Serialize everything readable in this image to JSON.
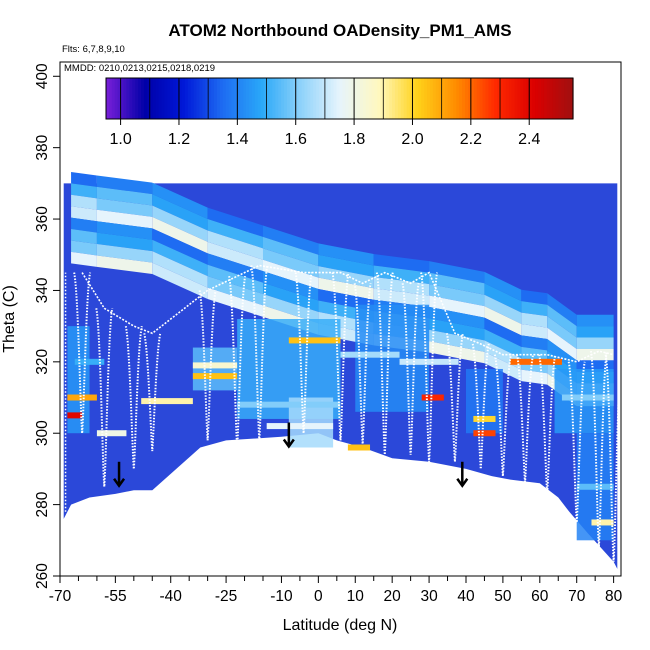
{
  "chart_data": {
    "type": "heatmap",
    "title": "ATOM2 Northbound OADensity_PM1_AMS",
    "annotation_flights": "Flts: 6,7,8,9,10",
    "annotation_dates": "MMDD: 0210,0213,0215,0218,0219",
    "xlabel": "Latitude (deg N)",
    "ylabel": "Theta (C)",
    "xlim": [
      -70,
      82
    ],
    "ylim": [
      260,
      404
    ],
    "x_ticks": [
      -70,
      -55,
      -40,
      -25,
      -10,
      0,
      10,
      20,
      30,
      40,
      50,
      60,
      70,
      80
    ],
    "x_minor_ticks": [
      -65,
      -60,
      -50,
      -45,
      -35,
      -30,
      -20,
      -15,
      -5,
      5,
      15,
      25,
      35,
      45,
      55,
      65,
      75
    ],
    "y_ticks": [
      260,
      280,
      300,
      320,
      340,
      360,
      380,
      400
    ],
    "colorbar": {
      "min": 0.95,
      "max": 2.55,
      "ticks": [
        "1.0",
        "1.2",
        "1.4",
        "1.6",
        "1.8",
        "2.0",
        "2.2",
        "2.4"
      ],
      "tick_values": [
        1.0,
        1.2,
        1.4,
        1.6,
        1.8,
        2.0,
        2.2,
        2.4
      ],
      "colors": [
        "#7a1fd9",
        "#0000a8",
        "#0018d8",
        "#1e6cf2",
        "#2aa8f8",
        "#8ed2fa",
        "#e6f4fc",
        "#fff8c0",
        "#ffd21a",
        "#ff8c00",
        "#ff2a00",
        "#dc0000",
        "#a01010"
      ]
    },
    "tropopause_boundary": {
      "lat": [
        -69,
        -67,
        -62,
        -55,
        -50,
        -45,
        -32,
        -25,
        -10,
        0,
        5,
        12,
        20,
        30,
        40,
        47,
        52,
        60,
        65,
        68,
        73,
        80,
        81,
        81,
        -69
      ],
      "theta": [
        276,
        280,
        282,
        283,
        284,
        284,
        296,
        298,
        299,
        300,
        298,
        296,
        293,
        292,
        290,
        288,
        287,
        286,
        282,
        278,
        272,
        264,
        262,
        370,
        370
      ]
    },
    "stratosphere_boundary": {
      "lat": [
        -67,
        -60,
        -45,
        -30,
        -15,
        0,
        15,
        30,
        45,
        55,
        62,
        70,
        80
      ],
      "theta": [
        370,
        369,
        367,
        360,
        355,
        350,
        347,
        345,
        342,
        337,
        336,
        330,
        330
      ]
    },
    "arrows_lat": [
      -54,
      -8,
      39
    ],
    "arrows_theta": [
      292,
      303,
      292
    ],
    "profiles": [
      {
        "lat": -64,
        "base": 300,
        "top": 345
      },
      {
        "lat": -58,
        "base": 285,
        "top": 335
      },
      {
        "lat": -50,
        "base": 290,
        "top": 330
      },
      {
        "lat": -45,
        "base": 295,
        "top": 328
      },
      {
        "lat": -30,
        "base": 298,
        "top": 340
      },
      {
        "lat": -22,
        "base": 296,
        "top": 344
      },
      {
        "lat": -16,
        "base": 298,
        "top": 347
      },
      {
        "lat": -4,
        "base": 300,
        "top": 345
      },
      {
        "lat": 6,
        "base": 298,
        "top": 345
      },
      {
        "lat": 12,
        "base": 297,
        "top": 342
      },
      {
        "lat": 18,
        "base": 294,
        "top": 345
      },
      {
        "lat": 25,
        "base": 294,
        "top": 342
      },
      {
        "lat": 30,
        "base": 292,
        "top": 345
      },
      {
        "lat": 37,
        "base": 292,
        "top": 328
      },
      {
        "lat": 44,
        "base": 290,
        "top": 325
      },
      {
        "lat": 50,
        "base": 288,
        "top": 322
      },
      {
        "lat": 56,
        "base": 286,
        "top": 322
      },
      {
        "lat": 62,
        "base": 283,
        "top": 322
      },
      {
        "lat": 70,
        "base": 275,
        "top": 320
      },
      {
        "lat": 76,
        "base": 268,
        "top": 323
      },
      {
        "lat": 80,
        "base": 264,
        "top": 322
      }
    ],
    "bands": [
      {
        "lat0": -68,
        "lat1": -64,
        "theta": 305,
        "value": 2.4
      },
      {
        "lat0": -68,
        "lat1": -60,
        "theta": 310,
        "value": 2.1
      },
      {
        "lat0": -66,
        "lat1": -58,
        "theta": 320,
        "value": 1.5
      },
      {
        "lat0": -60,
        "lat1": -52,
        "theta": 300,
        "value": 1.8
      },
      {
        "lat0": -48,
        "lat1": -34,
        "theta": 309,
        "value": 1.9
      },
      {
        "lat0": -34,
        "lat1": -22,
        "theta": 316,
        "value": 2.05
      },
      {
        "lat0": -34,
        "lat1": -22,
        "theta": 319,
        "value": 1.85
      },
      {
        "lat0": -22,
        "lat1": 6,
        "theta": 308,
        "value": 1.6
      },
      {
        "lat0": -14,
        "lat1": 4,
        "theta": 302,
        "value": 1.75
      },
      {
        "lat0": -8,
        "lat1": 6,
        "theta": 326,
        "value": 2.05
      },
      {
        "lat0": 6,
        "lat1": 22,
        "theta": 322,
        "value": 1.65
      },
      {
        "lat0": 8,
        "lat1": 14,
        "theta": 296,
        "value": 2.05
      },
      {
        "lat0": 22,
        "lat1": 38,
        "theta": 320,
        "value": 1.7
      },
      {
        "lat0": 28,
        "lat1": 34,
        "theta": 310,
        "value": 2.3
      },
      {
        "lat0": 42,
        "lat1": 48,
        "theta": 300,
        "value": 2.25
      },
      {
        "lat0": 42,
        "lat1": 48,
        "theta": 304,
        "value": 2.0
      },
      {
        "lat0": 52,
        "lat1": 66,
        "theta": 320,
        "value": 2.2
      },
      {
        "lat0": 66,
        "lat1": 80,
        "theta": 310,
        "value": 1.6
      },
      {
        "lat0": 70,
        "lat1": 80,
        "theta": 285,
        "value": 1.55
      },
      {
        "lat0": 74,
        "lat1": 80,
        "theta": 275,
        "value": 1.9
      }
    ]
  }
}
